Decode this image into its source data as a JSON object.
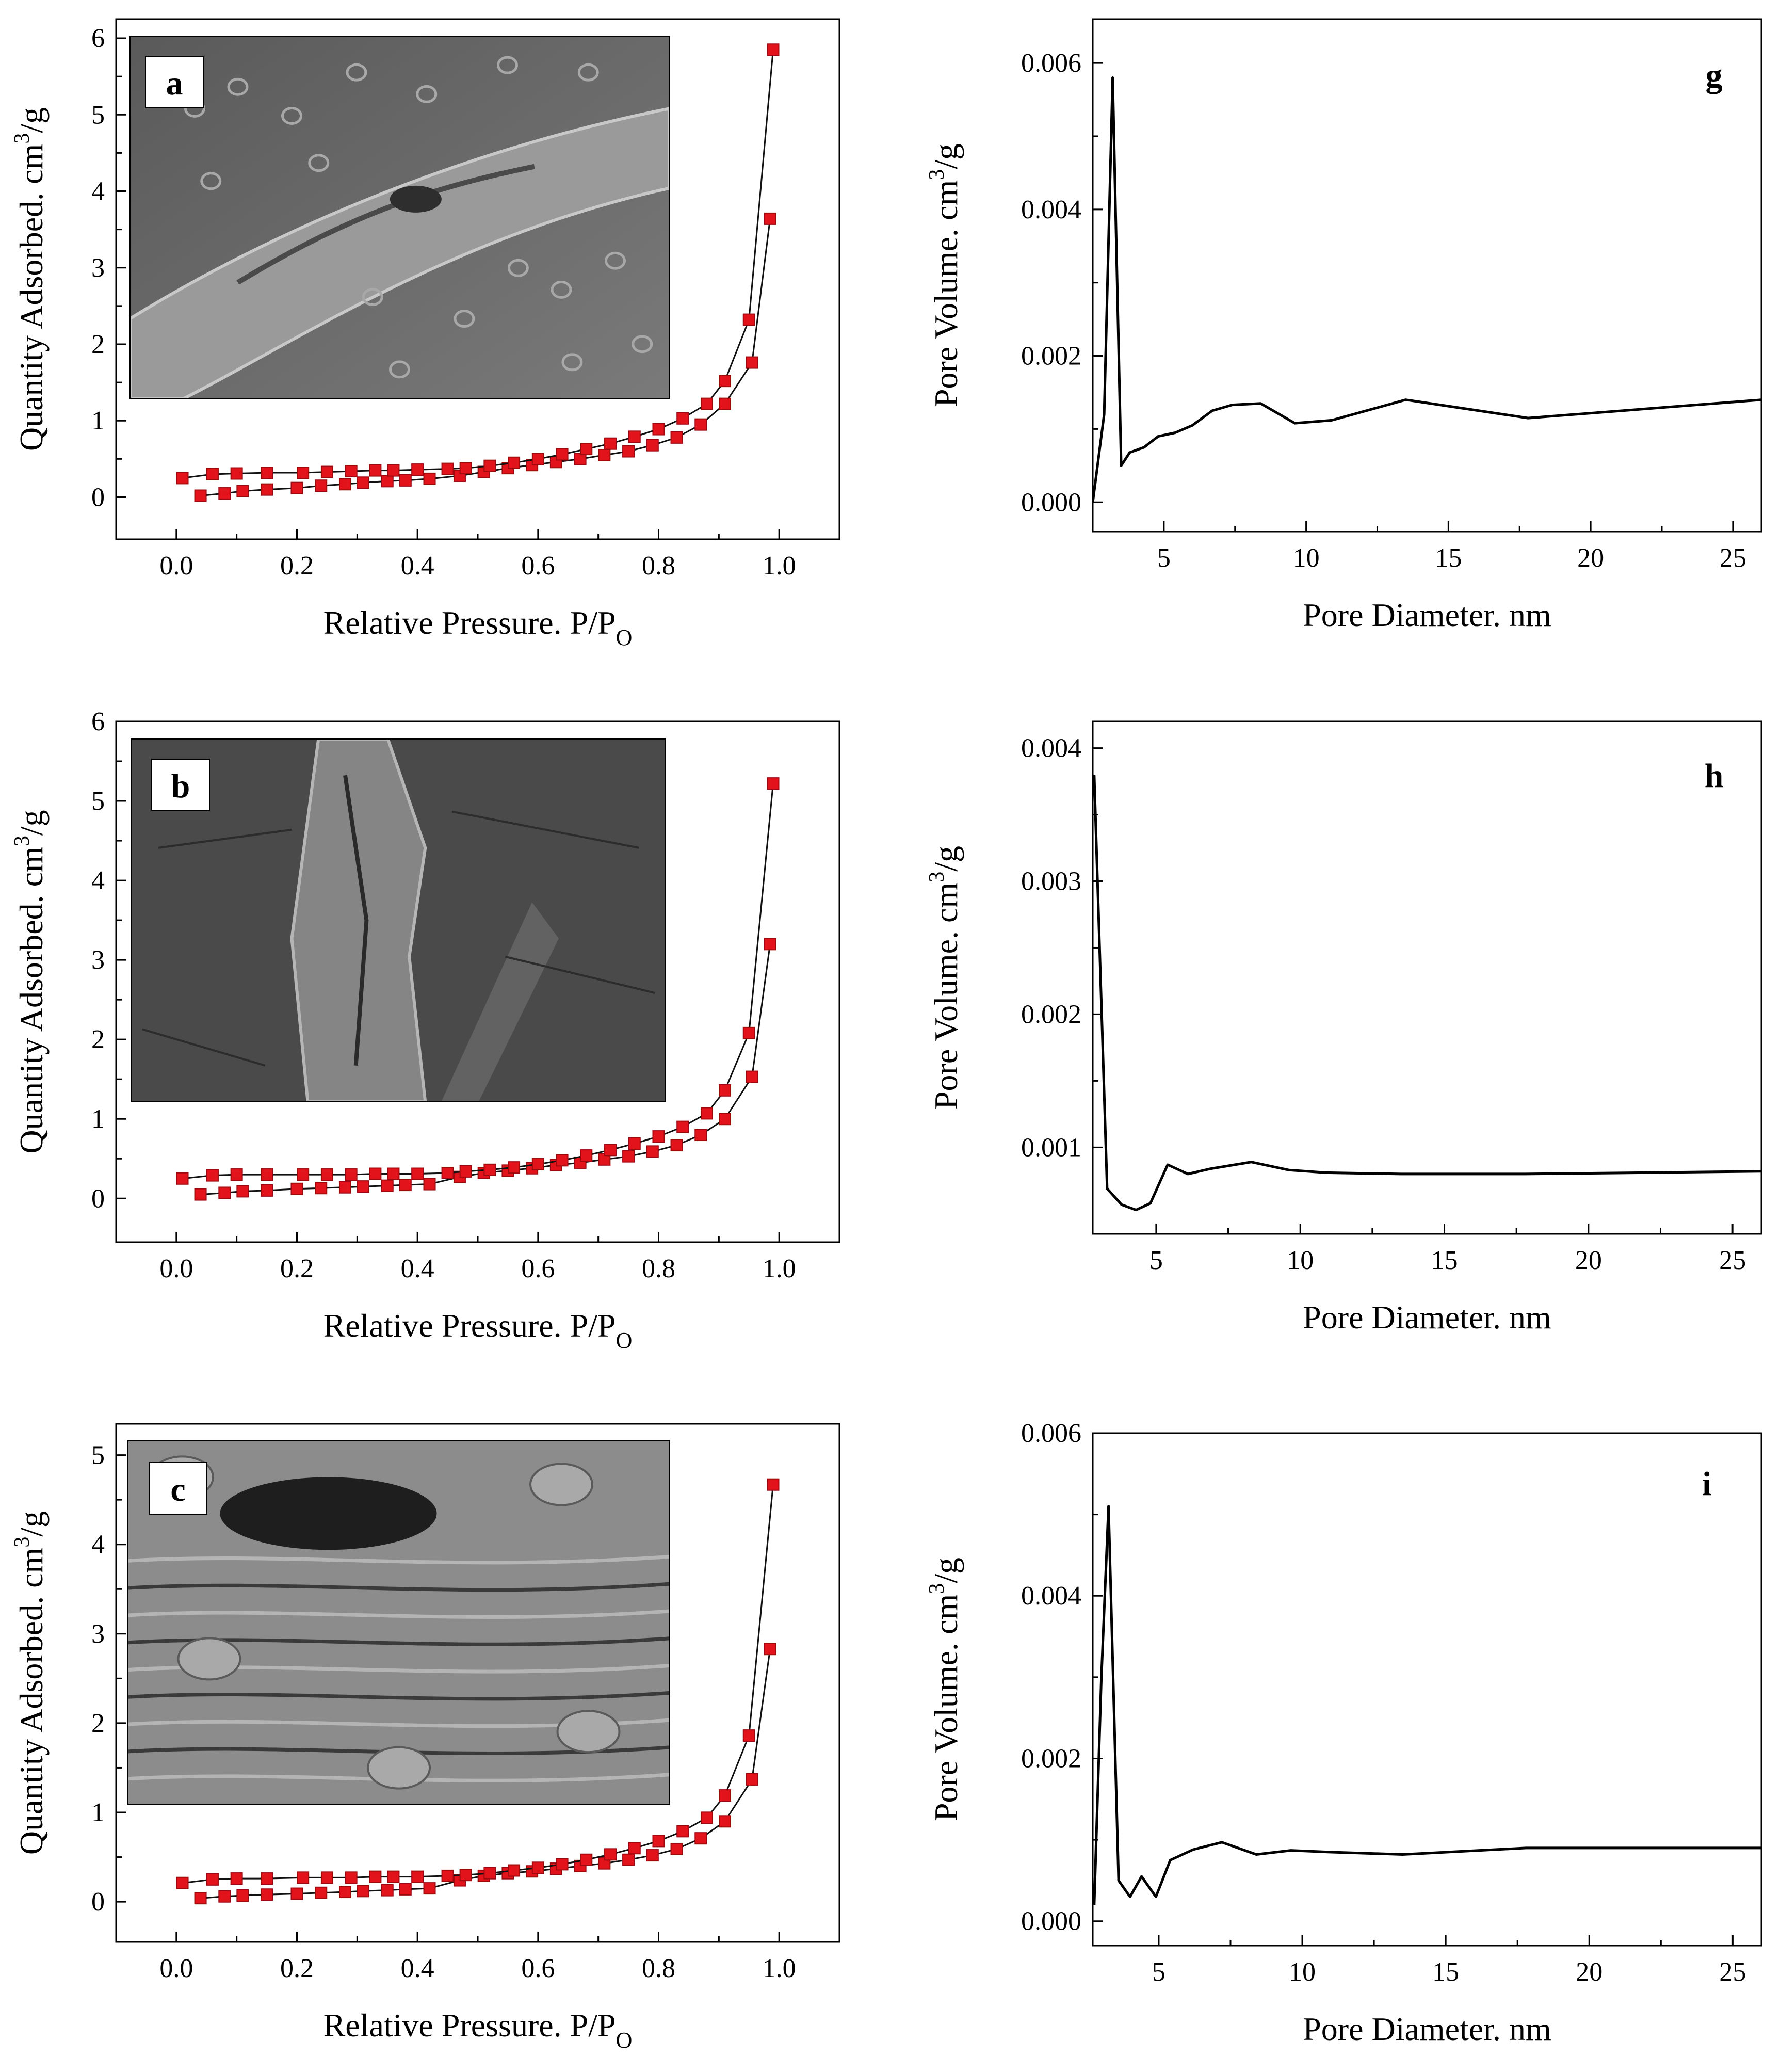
{
  "chart_data": [
    {
      "id": "a",
      "type": "scatter",
      "panel_label": "a",
      "xlabel": "Relative Pressure. P/P",
      "xlabel_sub": "O",
      "ylabel": "Quantity Adsorbed. cm",
      "ylabel_sup": "3",
      "ylabel_tail": "/g",
      "xlim": [
        -0.1,
        1.1
      ],
      "ylim": [
        -0.55,
        6.25
      ],
      "xticks": [
        0.0,
        0.2,
        0.4,
        0.6,
        0.8,
        1.0
      ],
      "xtick_labels": [
        "0.0",
        "0.2",
        "0.4",
        "0.6",
        "0.8",
        "1.0"
      ],
      "yticks": [
        0,
        1,
        2,
        3,
        4,
        5,
        6
      ],
      "ytick_labels": [
        "0",
        "1",
        "2",
        "3",
        "4",
        "5",
        "6"
      ],
      "inset": "SEM micrograph (fiber cross-section)",
      "series": [
        {
          "role": "adsorption",
          "x": [
            0.04,
            0.08,
            0.11,
            0.15,
            0.2,
            0.24,
            0.28,
            0.31,
            0.35,
            0.38,
            0.42,
            0.47,
            0.51,
            0.55,
            0.59,
            0.63,
            0.67,
            0.71,
            0.75,
            0.79,
            0.83,
            0.87,
            0.91,
            0.955,
            0.985
          ],
          "y": [
            0.02,
            0.05,
            0.08,
            0.1,
            0.12,
            0.15,
            0.17,
            0.19,
            0.21,
            0.22,
            0.24,
            0.28,
            0.33,
            0.38,
            0.42,
            0.46,
            0.5,
            0.55,
            0.6,
            0.68,
            0.78,
            0.95,
            1.22,
            1.76,
            3.64
          ]
        },
        {
          "role": "desorption",
          "x": [
            0.01,
            0.06,
            0.1,
            0.15,
            0.21,
            0.25,
            0.29,
            0.33,
            0.36,
            0.4,
            0.45,
            0.48,
            0.52,
            0.56,
            0.6,
            0.64,
            0.68,
            0.72,
            0.76,
            0.8,
            0.84,
            0.88,
            0.91,
            0.95,
            0.99
          ],
          "y": [
            0.25,
            0.3,
            0.31,
            0.32,
            0.32,
            0.33,
            0.34,
            0.35,
            0.35,
            0.36,
            0.37,
            0.38,
            0.41,
            0.45,
            0.5,
            0.56,
            0.63,
            0.7,
            0.79,
            0.89,
            1.03,
            1.22,
            1.52,
            2.32,
            5.85
          ]
        }
      ]
    },
    {
      "id": "b",
      "type": "scatter",
      "panel_label": "b",
      "xlabel": "Relative Pressure. P/P",
      "xlabel_sub": "O",
      "ylabel": "Quantity Adsorbed. cm",
      "ylabel_sup": "3",
      "ylabel_tail": "/g",
      "xlim": [
        -0.1,
        1.1
      ],
      "ylim": [
        -0.55,
        6.0
      ],
      "xticks": [
        0.0,
        0.2,
        0.4,
        0.6,
        0.8,
        1.0
      ],
      "xtick_labels": [
        "0.0",
        "0.2",
        "0.4",
        "0.6",
        "0.8",
        "1.0"
      ],
      "yticks": [
        0,
        1,
        2,
        3,
        4,
        5,
        6
      ],
      "ytick_labels": [
        "0",
        "1",
        "2",
        "3",
        "4",
        "5",
        "6"
      ],
      "inset": "SEM micrograph (layered fragment)",
      "series": [
        {
          "role": "adsorption",
          "x": [
            0.04,
            0.08,
            0.11,
            0.15,
            0.2,
            0.24,
            0.28,
            0.31,
            0.35,
            0.38,
            0.42,
            0.47,
            0.51,
            0.55,
            0.59,
            0.63,
            0.67,
            0.71,
            0.75,
            0.79,
            0.83,
            0.87,
            0.91,
            0.955,
            0.985
          ],
          "y": [
            0.05,
            0.07,
            0.09,
            0.1,
            0.12,
            0.13,
            0.14,
            0.15,
            0.16,
            0.17,
            0.18,
            0.27,
            0.32,
            0.35,
            0.38,
            0.42,
            0.45,
            0.49,
            0.53,
            0.59,
            0.67,
            0.8,
            1.0,
            1.53,
            3.2
          ]
        },
        {
          "role": "desorption",
          "x": [
            0.01,
            0.06,
            0.1,
            0.15,
            0.21,
            0.25,
            0.29,
            0.33,
            0.36,
            0.4,
            0.45,
            0.48,
            0.52,
            0.56,
            0.6,
            0.64,
            0.68,
            0.72,
            0.76,
            0.8,
            0.84,
            0.88,
            0.91,
            0.95,
            0.99
          ],
          "y": [
            0.25,
            0.29,
            0.3,
            0.3,
            0.3,
            0.3,
            0.3,
            0.31,
            0.31,
            0.31,
            0.32,
            0.34,
            0.36,
            0.39,
            0.43,
            0.48,
            0.54,
            0.61,
            0.69,
            0.78,
            0.9,
            1.07,
            1.36,
            2.08,
            5.22
          ]
        }
      ]
    },
    {
      "id": "c",
      "type": "scatter",
      "panel_label": "c",
      "xlabel": "Relative Pressure. P/P",
      "xlabel_sub": "O",
      "ylabel": "Quantity Adsorbed. cm",
      "ylabel_sup": "3",
      "ylabel_tail": "/g",
      "xlim": [
        -0.1,
        1.1
      ],
      "ylim": [
        -0.45,
        5.35
      ],
      "xticks": [
        0.0,
        0.2,
        0.4,
        0.6,
        0.8,
        1.0
      ],
      "xtick_labels": [
        "0.0",
        "0.2",
        "0.4",
        "0.6",
        "0.8",
        "1.0"
      ],
      "yticks": [
        0,
        1,
        2,
        3,
        4,
        5
      ],
      "ytick_labels": [
        "0",
        "1",
        "2",
        "3",
        "4",
        "5"
      ],
      "inset": "SEM micrograph (porous layered structure)",
      "series": [
        {
          "role": "adsorption",
          "x": [
            0.04,
            0.08,
            0.11,
            0.15,
            0.2,
            0.24,
            0.28,
            0.31,
            0.35,
            0.38,
            0.42,
            0.47,
            0.51,
            0.55,
            0.59,
            0.63,
            0.67,
            0.71,
            0.75,
            0.79,
            0.83,
            0.87,
            0.91,
            0.955,
            0.985
          ],
          "y": [
            0.04,
            0.06,
            0.07,
            0.08,
            0.09,
            0.1,
            0.11,
            0.12,
            0.13,
            0.14,
            0.15,
            0.24,
            0.29,
            0.32,
            0.34,
            0.37,
            0.4,
            0.43,
            0.47,
            0.52,
            0.59,
            0.71,
            0.9,
            1.37,
            2.83
          ]
        },
        {
          "role": "desorption",
          "x": [
            0.01,
            0.06,
            0.1,
            0.15,
            0.21,
            0.25,
            0.29,
            0.33,
            0.36,
            0.4,
            0.45,
            0.48,
            0.52,
            0.56,
            0.6,
            0.64,
            0.68,
            0.72,
            0.76,
            0.8,
            0.84,
            0.88,
            0.91,
            0.95,
            0.99
          ],
          "y": [
            0.21,
            0.25,
            0.26,
            0.26,
            0.27,
            0.27,
            0.27,
            0.28,
            0.28,
            0.28,
            0.29,
            0.3,
            0.32,
            0.35,
            0.38,
            0.42,
            0.47,
            0.53,
            0.6,
            0.68,
            0.79,
            0.94,
            1.19,
            1.86,
            4.67
          ]
        }
      ]
    },
    {
      "id": "g",
      "type": "line",
      "panel_label": "g",
      "xlabel": "Pore Diameter. nm",
      "ylabel": "Pore Volume. cm",
      "ylabel_sup": "3",
      "ylabel_tail": "/g",
      "xlim": [
        2.5,
        26
      ],
      "ylim": [
        -0.0004,
        0.0066
      ],
      "xticks": [
        5,
        10,
        15,
        20,
        25
      ],
      "xtick_labels": [
        "5",
        "10",
        "15",
        "20",
        "25"
      ],
      "yticks": [
        0.0,
        0.002,
        0.004,
        0.006
      ],
      "ytick_labels": [
        "0.000",
        "0.002",
        "0.004",
        "0.006"
      ],
      "series": [
        {
          "x": [
            2.5,
            2.9,
            3.2,
            3.5,
            3.8,
            4.3,
            4.8,
            5.4,
            6.0,
            6.7,
            7.4,
            8.4,
            9.6,
            10.9,
            13.5,
            17.8,
            26.0
          ],
          "y": [
            0.0,
            0.0012,
            0.0058,
            0.0005,
            0.00068,
            0.00075,
            0.0009,
            0.00095,
            0.00105,
            0.00125,
            0.00133,
            0.00135,
            0.00108,
            0.00112,
            0.0014,
            0.00115,
            0.0014
          ]
        }
      ]
    },
    {
      "id": "h",
      "type": "line",
      "panel_label": "h",
      "xlabel": "Pore Diameter. nm",
      "ylabel": "Pore Volume. cm",
      "ylabel_sup": "3",
      "ylabel_tail": "/g",
      "xlim": [
        2.8,
        26
      ],
      "ylim": [
        0.00035,
        0.0042
      ],
      "xticks": [
        5,
        10,
        15,
        20,
        25
      ],
      "xtick_labels": [
        "5",
        "10",
        "15",
        "20",
        "25"
      ],
      "yticks": [
        0.001,
        0.002,
        0.003,
        0.004
      ],
      "ytick_labels": [
        "0.001",
        "0.002",
        "0.003",
        "0.004"
      ],
      "series": [
        {
          "x": [
            2.85,
            3.3,
            3.8,
            4.3,
            4.8,
            5.4,
            6.1,
            6.9,
            8.3,
            9.6,
            10.9,
            13.5,
            17.8,
            26.0
          ],
          "y": [
            0.0038,
            0.00069,
            0.00057,
            0.00053,
            0.00058,
            0.00087,
            0.0008,
            0.00084,
            0.00089,
            0.00083,
            0.00081,
            0.0008,
            0.0008,
            0.00082
          ]
        }
      ]
    },
    {
      "id": "i",
      "type": "line",
      "panel_label": "i",
      "xlabel": "Pore Diameter. nm",
      "ylabel": "Pore Volume. cm",
      "ylabel_sup": "3",
      "ylabel_tail": "/g",
      "xlim": [
        2.7,
        26
      ],
      "ylim": [
        -0.0003,
        0.006
      ],
      "xticks": [
        5,
        10,
        15,
        20,
        25
      ],
      "xtick_labels": [
        "5",
        "10",
        "15",
        "20",
        "25"
      ],
      "yticks": [
        0.0,
        0.002,
        0.004,
        0.006
      ],
      "ytick_labels": [
        "0.000",
        "0.002",
        "0.004",
        "0.006"
      ],
      "series": [
        {
          "x": [
            2.75,
            3.0,
            3.25,
            3.6,
            4.0,
            4.4,
            4.9,
            5.4,
            6.2,
            7.2,
            8.4,
            9.6,
            10.9,
            13.5,
            17.8,
            26.0
          ],
          "y": [
            0.0002,
            0.003,
            0.0051,
            0.0005,
            0.0003,
            0.00055,
            0.0003,
            0.00075,
            0.00088,
            0.00097,
            0.00082,
            0.00087,
            0.00085,
            0.00082,
            0.0009,
            0.0009
          ]
        }
      ]
    }
  ],
  "colors": {
    "marker": "#e3131b",
    "marker_edge": "#9c0a10",
    "line": "#000000",
    "connector": "#111111",
    "inset_background": "#6d6d6d"
  }
}
